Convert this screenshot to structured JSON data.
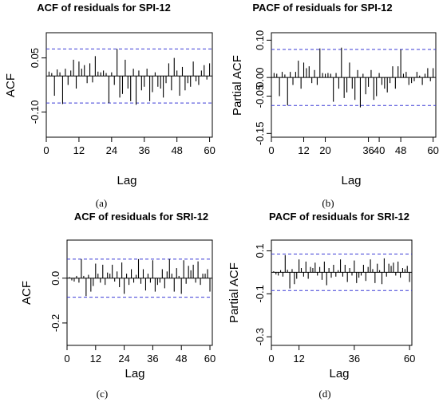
{
  "chart_data": [
    {
      "type": "bar",
      "title": "ACF of residuals for SPI-12",
      "xlabel": "Lag",
      "ylabel": "ACF",
      "caption": "(a)",
      "xlim": [
        0,
        61
      ],
      "ylim": [
        -0.17,
        0.12
      ],
      "xticks": [
        "0",
        "12",
        "24",
        "36",
        "48",
        "60"
      ],
      "yticks": [
        "-0.10",
        "0.05"
      ],
      "conf_bound": 0.075,
      "conf_color": "#3a3ad6",
      "lags": [
        1,
        2,
        3,
        4,
        5,
        6,
        7,
        8,
        9,
        10,
        11,
        12,
        13,
        14,
        15,
        16,
        17,
        18,
        19,
        20,
        21,
        22,
        23,
        24,
        25,
        26,
        27,
        28,
        29,
        30,
        31,
        32,
        33,
        34,
        35,
        36,
        37,
        38,
        39,
        40,
        41,
        42,
        43,
        44,
        45,
        46,
        47,
        48,
        49,
        50,
        51,
        52,
        53,
        54,
        55,
        56,
        57,
        58,
        59,
        60
      ],
      "values": [
        0.012,
        0.008,
        -0.055,
        0.018,
        0.01,
        -0.078,
        0.02,
        -0.025,
        0.015,
        0.045,
        -0.035,
        0.04,
        0.02,
        0.03,
        -0.02,
        0.035,
        -0.018,
        0.055,
        0.012,
        0.01,
        0.015,
        0.008,
        -0.075,
        0.01,
        -0.025,
        0.075,
        -0.06,
        -0.05,
        0.045,
        -0.035,
        -0.07,
        0.02,
        -0.08,
        0.015,
        -0.04,
        -0.03,
        0.02,
        -0.07,
        -0.045,
        0.01,
        -0.03,
        -0.035,
        -0.06,
        -0.02,
        0.035,
        -0.04,
        0.05,
        0.015,
        -0.055,
        0.025,
        -0.04,
        -0.02,
        -0.03,
        0.04,
        -0.015,
        -0.025,
        0.015,
        0.03,
        -0.01,
        0.035
      ]
    },
    {
      "type": "bar",
      "title": "PACF of residuals for SPI-12",
      "xlabel": "Lag",
      "ylabel": "Partial ACF",
      "caption": "(b)",
      "xlim": [
        0,
        61
      ],
      "ylim": [
        -0.16,
        0.12
      ],
      "xticks": [
        "0",
        "20",
        "40",
        "60"
      ],
      "xticks_minor": [
        "12",
        "36",
        "48"
      ],
      "yticks": [
        "-0.15",
        "-0.05",
        "0.00",
        "0.10"
      ],
      "conf_bound": 0.075,
      "conf_color": "#3a3ad6",
      "lags": [
        1,
        2,
        3,
        4,
        5,
        6,
        7,
        8,
        9,
        10,
        11,
        12,
        13,
        14,
        15,
        16,
        17,
        18,
        19,
        20,
        21,
        22,
        23,
        24,
        25,
        26,
        27,
        28,
        29,
        30,
        31,
        32,
        33,
        34,
        35,
        36,
        37,
        38,
        39,
        40,
        41,
        42,
        43,
        44,
        45,
        46,
        47,
        48,
        49,
        50,
        51,
        52,
        53,
        54,
        55,
        56,
        57,
        58,
        59,
        60
      ],
      "values": [
        0.012,
        0.01,
        -0.05,
        0.015,
        0.008,
        -0.075,
        0.015,
        -0.02,
        0.015,
        0.045,
        -0.03,
        0.04,
        0.025,
        0.03,
        -0.015,
        0.02,
        -0.02,
        0.078,
        0.012,
        0.01,
        0.012,
        0.01,
        -0.065,
        0.012,
        -0.03,
        0.08,
        -0.055,
        -0.04,
        0.04,
        -0.03,
        -0.06,
        0.02,
        -0.08,
        0.01,
        -0.045,
        -0.025,
        0.02,
        -0.06,
        -0.05,
        0.012,
        -0.02,
        -0.03,
        -0.04,
        -0.015,
        0.03,
        -0.03,
        0.03,
        0.075,
        0.01,
        0.015,
        -0.02,
        -0.015,
        -0.01,
        0.015,
        0.005,
        -0.02,
        0.01,
        0.025,
        -0.01,
        0.025
      ]
    },
    {
      "type": "bar",
      "title": "ACF of residuals for SRI-12",
      "xlabel": "Lag",
      "ylabel": "ACF",
      "caption": "(c)",
      "xlim": [
        0,
        61
      ],
      "ylim": [
        -0.3,
        0.17
      ],
      "xticks": [
        "0",
        "12",
        "24",
        "36",
        "48",
        "60"
      ],
      "yticks": [
        "-0.2",
        "0.0"
      ],
      "conf_bound": 0.085,
      "conf_color": "#3a3ad6",
      "lags": [
        1,
        2,
        3,
        4,
        5,
        6,
        7,
        8,
        9,
        10,
        11,
        12,
        13,
        14,
        15,
        16,
        17,
        18,
        19,
        20,
        21,
        22,
        23,
        24,
        25,
        26,
        27,
        28,
        29,
        30,
        31,
        32,
        33,
        34,
        35,
        36,
        37,
        38,
        39,
        40,
        41,
        42,
        43,
        44,
        45,
        46,
        47,
        48,
        49,
        50,
        51,
        52,
        53,
        54,
        55,
        56,
        57,
        58,
        59,
        60
      ],
      "values": [
        0.005,
        -0.01,
        -0.015,
        0.01,
        -0.02,
        0.085,
        0.01,
        -0.08,
        0.015,
        -0.06,
        -0.035,
        0.065,
        0.02,
        -0.02,
        0.06,
        -0.03,
        0.025,
        0.02,
        0.06,
        -0.015,
        0.03,
        -0.04,
        0.07,
        -0.07,
        0.02,
        -0.03,
        0.04,
        -0.02,
        0.015,
        0.085,
        -0.025,
        0.04,
        -0.055,
        0.02,
        -0.02,
        0.08,
        -0.06,
        -0.03,
        -0.02,
        0.04,
        -0.045,
        0.03,
        0.085,
        0.02,
        -0.06,
        0.045,
        0.01,
        -0.07,
        0.08,
        -0.025,
        0.055,
        0.035,
        0.06,
        -0.02,
        0.075,
        -0.03,
        0.02,
        0.02,
        0.04,
        -0.06
      ]
    },
    {
      "type": "bar",
      "title": "PACF of residuals for SRI-12",
      "xlabel": "Lag",
      "ylabel": "Partial ACF",
      "caption": "(d)",
      "xlim": [
        0,
        61
      ],
      "ylim": [
        -0.34,
        0.15
      ],
      "xticks": [
        "0",
        "12",
        "36",
        "60"
      ],
      "yticks": [
        "-0.3",
        "-0.1",
        "0.1"
      ],
      "conf_bound": 0.085,
      "conf_color": "#3a3ad6",
      "lags": [
        1,
        2,
        3,
        4,
        5,
        6,
        7,
        8,
        9,
        10,
        11,
        12,
        13,
        14,
        15,
        16,
        17,
        18,
        19,
        20,
        21,
        22,
        23,
        24,
        25,
        26,
        27,
        28,
        29,
        30,
        31,
        32,
        33,
        34,
        35,
        36,
        37,
        38,
        39,
        40,
        41,
        42,
        43,
        44,
        45,
        46,
        47,
        48,
        49,
        50,
        51,
        52,
        53,
        54,
        55,
        56,
        57,
        58,
        59,
        60
      ],
      "values": [
        0.005,
        -0.01,
        -0.015,
        0.01,
        -0.02,
        0.08,
        0.012,
        -0.075,
        0.015,
        -0.055,
        -0.03,
        0.06,
        0.02,
        -0.02,
        0.05,
        -0.03,
        0.025,
        0.02,
        0.045,
        -0.015,
        0.025,
        -0.035,
        0.05,
        -0.06,
        0.02,
        -0.025,
        0.035,
        -0.02,
        0.01,
        0.06,
        -0.02,
        0.035,
        -0.045,
        0.02,
        -0.015,
        0.055,
        -0.05,
        -0.025,
        -0.015,
        0.035,
        -0.04,
        0.025,
        0.06,
        0.015,
        -0.05,
        0.04,
        0.01,
        -0.055,
        0.065,
        -0.02,
        0.04,
        0.03,
        0.045,
        -0.015,
        0.05,
        -0.025,
        0.02,
        0.015,
        0.03,
        -0.045
      ]
    }
  ]
}
